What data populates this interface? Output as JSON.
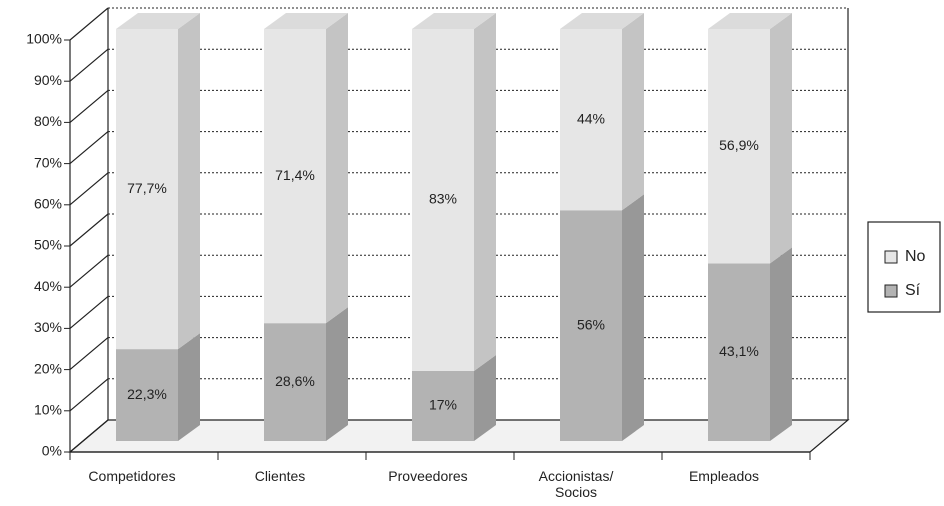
{
  "chart_data": {
    "type": "bar",
    "stacked": true,
    "three_d": true,
    "categories": [
      "Competidores",
      "Clientes",
      "Proveedores",
      "Accionistas/\nSocios",
      "Empleados"
    ],
    "series": [
      {
        "name": "Sí",
        "color": "#b3b3b3",
        "values": [
          22.3,
          28.6,
          17,
          56,
          43.1
        ],
        "value_labels": [
          "22,3%",
          "28,6%",
          "17%",
          "56%",
          "43,1%"
        ]
      },
      {
        "name": "No",
        "color": "#e6e6e6",
        "values": [
          77.7,
          71.4,
          83,
          44,
          56.9
        ],
        "value_labels": [
          "77,7%",
          "71,4%",
          "83%",
          "44%",
          "56,9%"
        ]
      }
    ],
    "ylim": [
      0,
      100
    ],
    "yticks": [
      {
        "value": 0,
        "label": "0%"
      },
      {
        "value": 10,
        "label": "10%"
      },
      {
        "value": 20,
        "label": "20%"
      },
      {
        "value": 30,
        "label": "30%"
      },
      {
        "value": 40,
        "label": "40%"
      },
      {
        "value": 50,
        "label": "50%"
      },
      {
        "value": 60,
        "label": "60%"
      },
      {
        "value": 70,
        "label": "70%"
      },
      {
        "value": 80,
        "label": "80%"
      },
      {
        "value": 90,
        "label": "90%"
      },
      {
        "value": 100,
        "label": "100%"
      }
    ],
    "grid": true,
    "legend": "right"
  }
}
